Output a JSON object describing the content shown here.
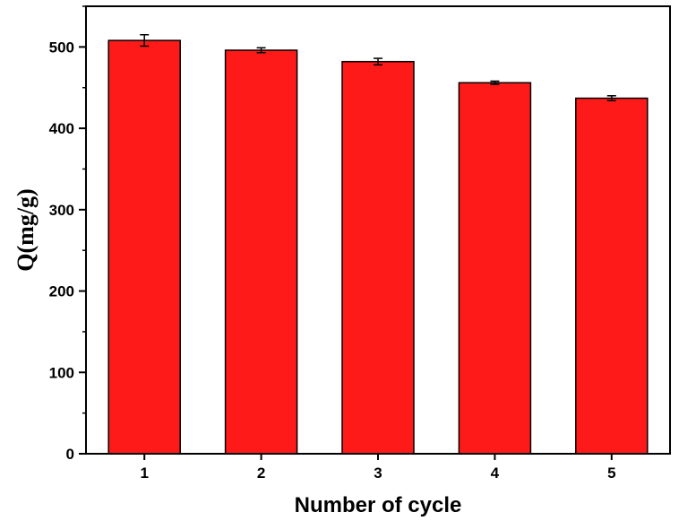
{
  "chart_data": {
    "type": "bar",
    "categories": [
      "1",
      "2",
      "3",
      "4",
      "5"
    ],
    "values": [
      508,
      496,
      482,
      456,
      437
    ],
    "errors": [
      7,
      3,
      4,
      2,
      3
    ],
    "xlabel": "Number of cycle",
    "ylabel": "Q(mg/g)",
    "ylim": [
      0,
      550
    ],
    "yticks": [
      0,
      100,
      200,
      300,
      400,
      500
    ],
    "y_minor_step": 50,
    "grid": false,
    "legend": "none",
    "bar_color": "#ff1a1a",
    "bar_edge_color": "#000000",
    "axis_color": "#000000"
  }
}
